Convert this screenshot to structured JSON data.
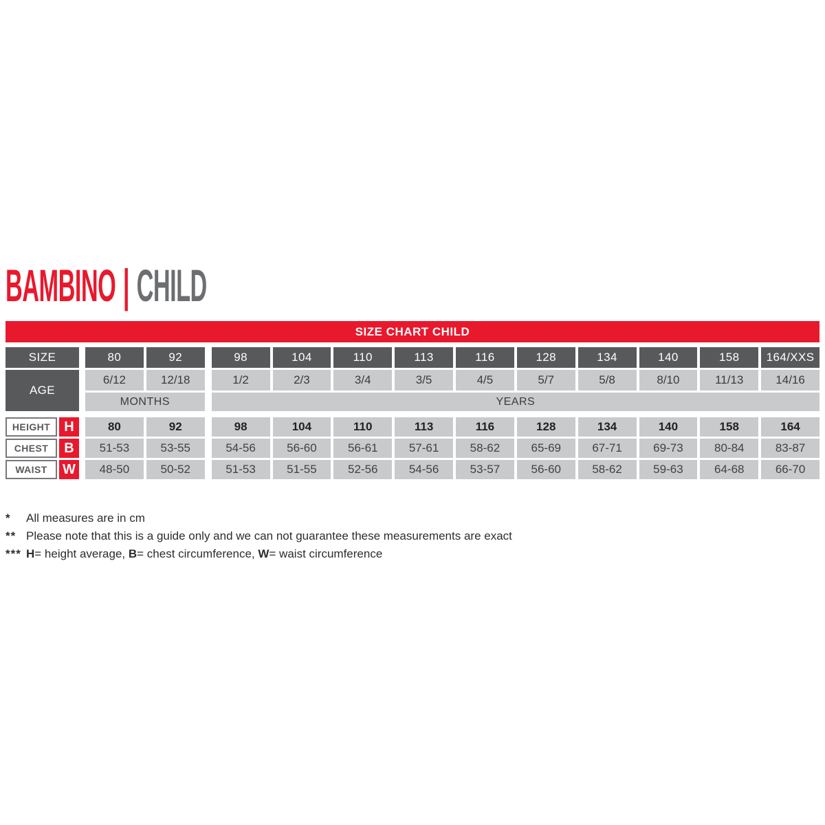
{
  "header": {
    "title_primary": "BAMBINO",
    "title_separator": "|",
    "title_secondary": "CHILD"
  },
  "table": {
    "banner": "SIZE CHART CHILD",
    "size_label": "SIZE",
    "age_label": "AGE",
    "months_label": "MONTHS",
    "years_label": "YEARS",
    "sizes": [
      "80",
      "92",
      "98",
      "104",
      "110",
      "113",
      "116",
      "128",
      "134",
      "140",
      "158",
      "164/XXS"
    ],
    "ages": [
      "6/12",
      "12/18",
      "1/2",
      "2/3",
      "3/4",
      "3/5",
      "4/5",
      "5/7",
      "5/8",
      "8/10",
      "11/13",
      "14/16"
    ],
    "measure_rows": [
      {
        "label": "HEIGHT",
        "letter": "H",
        "bold": true,
        "values": [
          "80",
          "92",
          "98",
          "104",
          "110",
          "113",
          "116",
          "128",
          "134",
          "140",
          "158",
          "164"
        ]
      },
      {
        "label": "CHEST",
        "letter": "B",
        "bold": false,
        "values": [
          "51-53",
          "53-55",
          "54-56",
          "56-60",
          "56-61",
          "57-61",
          "58-62",
          "65-69",
          "67-71",
          "69-73",
          "80-84",
          "83-87"
        ]
      },
      {
        "label": "WAIST",
        "letter": "W",
        "bold": false,
        "values": [
          "48-50",
          "50-52",
          "51-53",
          "51-55",
          "52-56",
          "54-56",
          "53-57",
          "56-60",
          "58-62",
          "59-63",
          "64-68",
          "66-70"
        ]
      }
    ]
  },
  "footnotes": [
    {
      "marker": "*",
      "segments": [
        {
          "text": "All measures are in cm",
          "bold": false
        }
      ]
    },
    {
      "marker": "**",
      "segments": [
        {
          "text": "Please note that this is a guide only and we can not guarantee these measurements are exact",
          "bold": false
        }
      ]
    },
    {
      "marker": "***",
      "segments": [
        {
          "text": "H",
          "bold": true
        },
        {
          "text": "= height average, ",
          "bold": false
        },
        {
          "text": "B",
          "bold": true
        },
        {
          "text": "= chest circumference, ",
          "bold": false
        },
        {
          "text": "W",
          "bold": true
        },
        {
          "text": "= waist circumference",
          "bold": false
        }
      ]
    }
  ],
  "colors": {
    "accent_red": "#e8192d",
    "header_dark_gray": "#58595b",
    "cell_light_gray": "#c9cacb",
    "title_gray": "#6d6e71",
    "text_dark": "#2d2c2f"
  }
}
